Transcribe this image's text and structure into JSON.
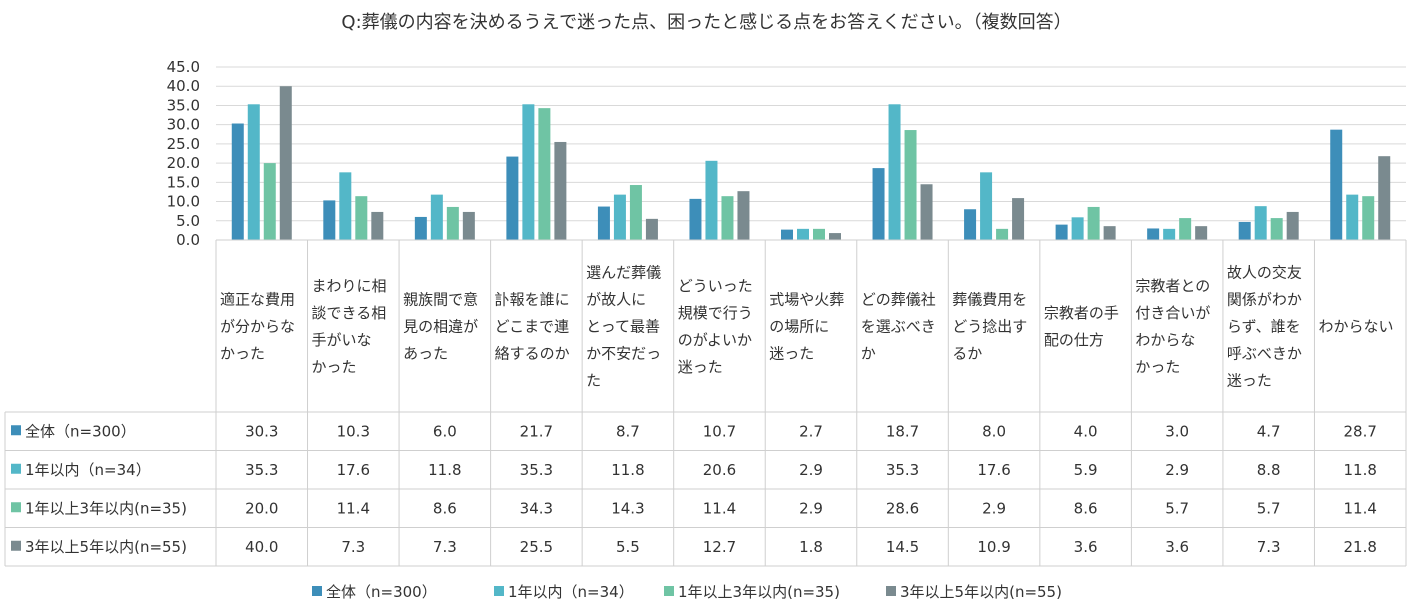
{
  "chart_data": {
    "type": "bar",
    "title": "Q:葬儀の内容を決めるうえで迷った点、困ったと感じる点をお答えください。（複数回答）",
    "xlabel": "",
    "ylabel": "",
    "ylim": [
      0,
      45
    ],
    "yticks": [
      "0.0",
      "5.0",
      "10.0",
      "15.0",
      "20.0",
      "25.0",
      "30.0",
      "35.0",
      "40.0",
      "45.0"
    ],
    "grid": true,
    "legend_position": "bottom",
    "categories": [
      "適正な費用が分からなかった",
      "まわりに相談できる相手がいなかった",
      "親族間で意見の相違があった",
      "訃報を誰にどこまで連絡するのか",
      "選んだ葬儀が故人にとって最善か不安だった",
      "どういった規模で行うのがよいか迷った",
      "式場や火葬の場所に迷った",
      "どの葬儀社を選ぶべきか",
      "葬儀費用をどう捻出するか",
      "宗教者の手配の仕方",
      "宗教者との付き合いがわからなかった",
      "故人の交友関係がわからず、誰を呼ぶべきか迷った",
      "わからない"
    ],
    "category_lines": [
      [
        "適正な費用",
        "が分からな",
        "かった"
      ],
      [
        "まわりに相",
        "談できる相",
        "手がいな",
        "かった"
      ],
      [
        "親族間で意",
        "見の相違が",
        "あった"
      ],
      [
        "訃報を誰に",
        "どこまで連",
        "絡するのか"
      ],
      [
        "選んだ葬儀",
        "が故人に",
        "とって最善",
        "か不安だっ",
        "た"
      ],
      [
        "どういった",
        "規模で行う",
        "のがよいか",
        "迷った"
      ],
      [
        "式場や火葬",
        "の場所に",
        "迷った"
      ],
      [
        "どの葬儀社",
        "を選ぶべき",
        "か"
      ],
      [
        "葬儀費用を",
        "どう捻出す",
        "るか"
      ],
      [
        "宗教者の手",
        "配の仕方"
      ],
      [
        "宗教者との",
        "付き合いが",
        "わからな",
        "かった"
      ],
      [
        "故人の交友",
        "関係がわか",
        "らず、誰を",
        "呼ぶべきか",
        "迷った"
      ],
      [
        "わからない"
      ]
    ],
    "series": [
      {
        "name": "全体（n=300）",
        "color": "#3d8eb9",
        "values": [
          30.3,
          10.3,
          6.0,
          21.7,
          8.7,
          10.7,
          2.7,
          18.7,
          8.0,
          4.0,
          3.0,
          4.7,
          28.7
        ],
        "labels": [
          "30.3",
          "10.3",
          "6.0",
          "21.7",
          "8.7",
          "10.7",
          "2.7",
          "18.7",
          "8.0",
          "4.0",
          "3.0",
          "4.7",
          "28.7"
        ]
      },
      {
        "name": "1年以内（n=34）",
        "color": "#53b7c8",
        "values": [
          35.3,
          17.6,
          11.8,
          35.3,
          11.8,
          20.6,
          2.9,
          35.3,
          17.6,
          5.9,
          2.9,
          8.8,
          11.8
        ],
        "labels": [
          "35.3",
          "17.6",
          "11.8",
          "35.3",
          "11.8",
          "20.6",
          "2.9",
          "35.3",
          "17.6",
          "5.9",
          "2.9",
          "8.8",
          "11.8"
        ]
      },
      {
        "name": "1年以上3年以内(n=35)",
        "color": "#6fc4a4",
        "values": [
          20.0,
          11.4,
          8.6,
          34.3,
          14.3,
          11.4,
          2.9,
          28.6,
          2.9,
          8.6,
          5.7,
          5.7,
          11.4
        ],
        "labels": [
          "20.0",
          "11.4",
          "8.6",
          "34.3",
          "14.3",
          "11.4",
          "2.9",
          "28.6",
          "2.9",
          "8.6",
          "5.7",
          "5.7",
          "11.4"
        ]
      },
      {
        "name": "3年以上5年以内(n=55)",
        "color": "#7a8a8f",
        "values": [
          40.0,
          7.3,
          7.3,
          25.5,
          5.5,
          12.7,
          1.8,
          14.5,
          10.9,
          3.6,
          3.6,
          7.3,
          21.8
        ],
        "labels": [
          "40.0",
          "7.3",
          "7.3",
          "25.5",
          "5.5",
          "12.7",
          "1.8",
          "14.5",
          "10.9",
          "3.6",
          "3.6",
          "7.3",
          "21.8"
        ]
      }
    ],
    "table_row_labels": [
      "全体（n=300）",
      "1年以内（n=34）",
      "1年以上3年以内(n=35)",
      "3年以上5年以内(n=55)"
    ]
  }
}
